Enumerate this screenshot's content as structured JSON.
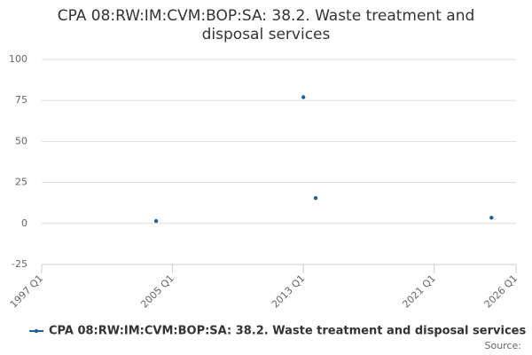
{
  "chart_data": {
    "type": "scatter",
    "title": "CPA 08:RW:IM:CVM:BOP:SA: 38.2. Waste treatment and",
    "title_line_2": "disposal services",
    "source": "Source:",
    "x": [
      "2004 Q1",
      "2013 Q1",
      "2013 Q4",
      "2024 Q3"
    ],
    "series": [
      {
        "name": "CPA 08:RW:IM:CVM:BOP:SA: 38.2. Waste treatment and disposal services",
        "color": "#206095",
        "values": [
          1.5,
          77,
          15.5,
          3.5
        ]
      }
    ],
    "xlim": [
      "1997 Q1",
      "2026 Q1"
    ],
    "xticks": [
      "1997 Q1",
      "2005 Q1",
      "2013 Q1",
      "2021 Q1",
      "2026 Q1"
    ],
    "ylim": [
      -25,
      100
    ],
    "yticks": [
      -25,
      0,
      25,
      50,
      75,
      100
    ],
    "grid": true
  }
}
